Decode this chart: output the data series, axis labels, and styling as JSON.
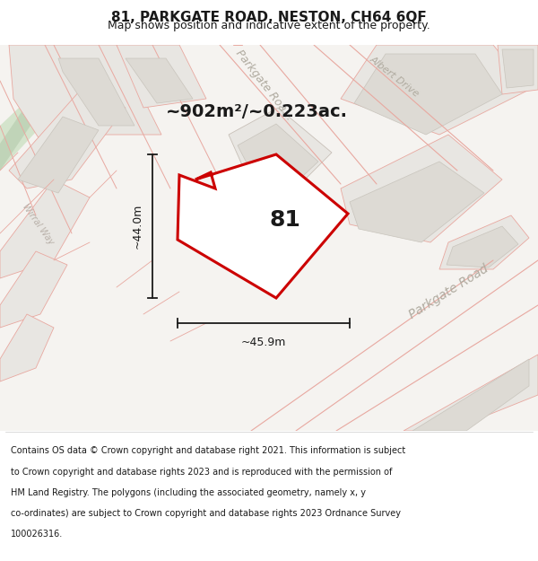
{
  "title": "81, PARKGATE ROAD, NESTON, CH64 6QF",
  "subtitle": "Map shows position and indicative extent of the property.",
  "area_text": "~902m²/~0.223ac.",
  "label_81": "81",
  "dim_height": "~44.0m",
  "dim_width": "~45.9m",
  "footer_lines": [
    "Contains OS data © Crown copyright and database right 2021. This information is subject",
    "to Crown copyright and database rights 2023 and is reproduced with the permission of",
    "HM Land Registry. The polygons (including the associated geometry, namely x, y",
    "co-ordinates) are subject to Crown copyright and database rights 2023 Ordnance Survey",
    "100026316."
  ],
  "map_bg": "#f5f3f0",
  "road_fill": "#f0ede8",
  "plot_bg": "#e8e6e2",
  "building_fill": "#dddad4",
  "building_stroke": "#c8c4bc",
  "plot_stroke": "#c8c0b8",
  "pink_line": "#e8a8a0",
  "gray_line": "#c8c0b8",
  "green_fill": "#d4e4cc",
  "green_dark": "#c0d4b8",
  "prop_fill": "#ffffff",
  "prop_stroke": "#cc0000",
  "road_label_color": "#b0aba0",
  "dim_color": "#1a1a1a",
  "text_color": "#1a1a1a",
  "footer_color": "#1a1a1a",
  "title_fontsize": 11,
  "subtitle_fontsize": 9,
  "area_fontsize": 14,
  "label_fontsize": 18,
  "road_label_fontsize": 9,
  "dim_fontsize": 9,
  "footer_fontsize": 7
}
